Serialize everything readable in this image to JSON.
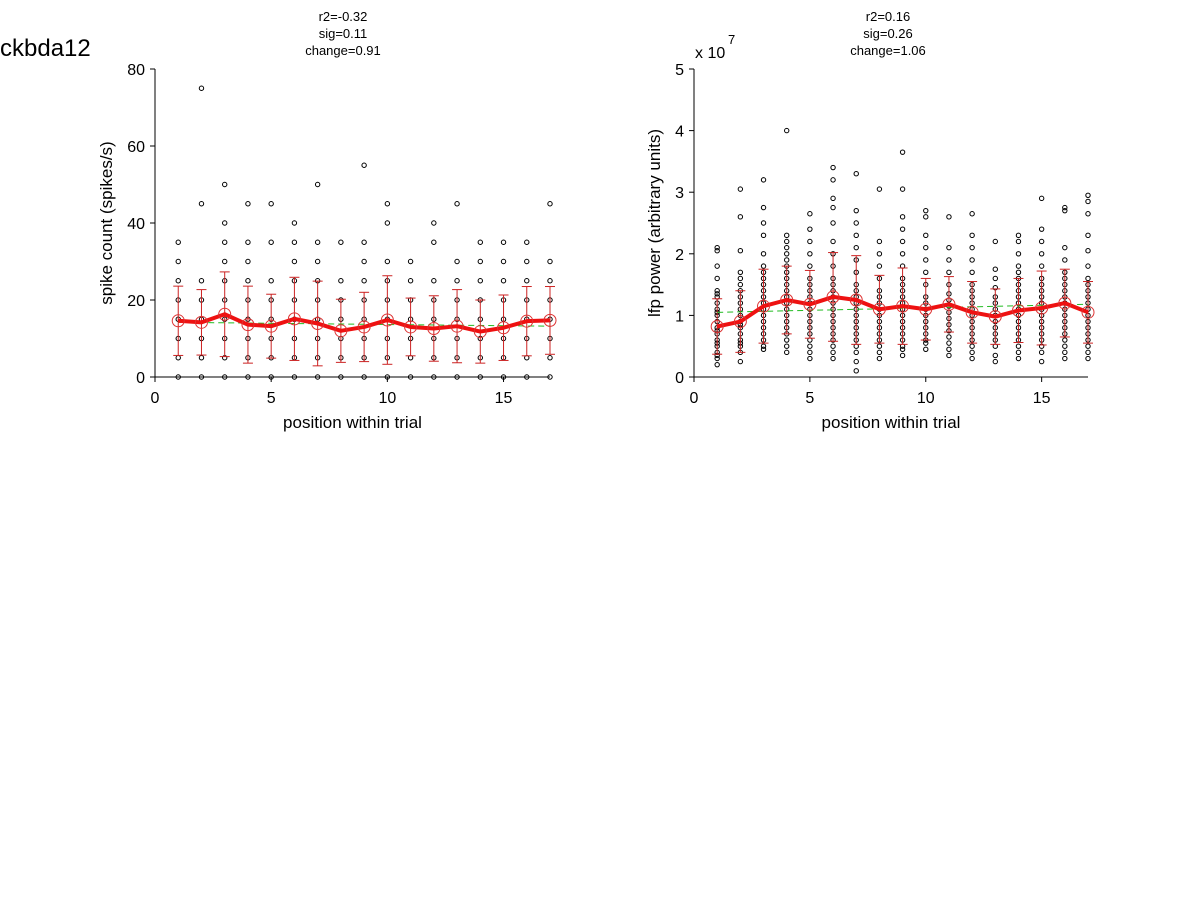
{
  "suptitle": "ckbda12",
  "colors": {
    "points": "#000000",
    "mean": "#ee1111",
    "errorbars": "#cc2222",
    "fit": "#22bb22"
  },
  "chart_data": [
    {
      "type": "scatter",
      "title_lines": [
        "r2=-0.32",
        "sig=0.11",
        "change=0.91"
      ],
      "xlabel": "position within trial",
      "ylabel": "spike count (spikes/s)",
      "exponent_label": "",
      "xlim": [
        0,
        17
      ],
      "ylim": [
        0,
        80
      ],
      "xticks": [
        0,
        5,
        10,
        15
      ],
      "yticks": [
        0,
        20,
        40,
        60,
        80
      ],
      "grid": false,
      "x": [
        1,
        2,
        3,
        4,
        5,
        6,
        7,
        8,
        9,
        10,
        11,
        12,
        13,
        14,
        15,
        16,
        17
      ],
      "mean": [
        14.6,
        14.2,
        16.3,
        13.6,
        13.2,
        15.1,
        13.9,
        12.0,
        13.0,
        14.8,
        13.0,
        12.6,
        13.2,
        11.8,
        12.8,
        14.5,
        14.7
      ],
      "error": [
        9.0,
        8.5,
        11.0,
        10.0,
        8.3,
        10.8,
        11.0,
        8.2,
        9.0,
        11.5,
        7.5,
        8.5,
        9.5,
        8.2,
        8.5,
        9.0,
        8.8
      ],
      "fit": [
        14.2,
        13.2
      ],
      "points": [
        [
          0,
          5,
          10,
          15,
          20,
          25,
          30,
          35
        ],
        [
          0,
          5,
          10,
          15,
          20,
          25,
          45,
          75
        ],
        [
          0,
          5,
          10,
          15,
          20,
          25,
          30,
          35,
          40,
          50
        ],
        [
          0,
          5,
          10,
          15,
          20,
          25,
          30,
          35,
          45
        ],
        [
          0,
          5,
          10,
          15,
          20,
          25,
          35,
          45
        ],
        [
          0,
          5,
          10,
          15,
          20,
          25,
          30,
          35,
          40
        ],
        [
          0,
          5,
          10,
          15,
          20,
          25,
          30,
          35,
          50
        ],
        [
          0,
          5,
          10,
          15,
          20,
          25,
          35
        ],
        [
          0,
          5,
          10,
          15,
          20,
          25,
          30,
          35,
          55
        ],
        [
          0,
          5,
          10,
          15,
          20,
          25,
          30,
          40,
          45
        ],
        [
          0,
          5,
          10,
          15,
          20,
          25,
          30
        ],
        [
          0,
          5,
          10,
          15,
          20,
          25,
          35,
          40
        ],
        [
          0,
          5,
          10,
          15,
          20,
          25,
          30,
          45
        ],
        [
          0,
          5,
          10,
          15,
          20,
          25,
          30,
          35
        ],
        [
          0,
          5,
          10,
          15,
          20,
          25,
          30,
          35
        ],
        [
          0,
          5,
          10,
          15,
          20,
          25,
          30,
          35
        ],
        [
          0,
          5,
          10,
          15,
          20,
          25,
          30,
          45
        ]
      ]
    },
    {
      "type": "scatter",
      "title_lines": [
        "r2=0.16",
        "sig=0.26",
        "change=1.06"
      ],
      "xlabel": "position within trial",
      "ylabel": "lfp power (arbitrary units)",
      "exponent_label": "x 10",
      "exponent_power": "7",
      "xlim": [
        0,
        17
      ],
      "ylim": [
        0,
        5
      ],
      "xticks": [
        0,
        5,
        10,
        15
      ],
      "yticks": [
        0,
        1,
        2,
        3,
        4,
        5
      ],
      "grid": false,
      "x": [
        1,
        2,
        3,
        4,
        5,
        6,
        7,
        8,
        9,
        10,
        11,
        12,
        13,
        14,
        15,
        16,
        17
      ],
      "mean": [
        0.82,
        0.9,
        1.15,
        1.25,
        1.18,
        1.3,
        1.25,
        1.1,
        1.15,
        1.1,
        1.18,
        1.05,
        0.98,
        1.08,
        1.12,
        1.2,
        1.05
      ],
      "error": [
        0.45,
        0.5,
        0.6,
        0.55,
        0.55,
        0.72,
        0.72,
        0.55,
        0.62,
        0.5,
        0.45,
        0.5,
        0.45,
        0.52,
        0.6,
        0.55,
        0.5
      ],
      "fit": [
        1.05,
        1.18
      ],
      "points": [
        [
          0.2,
          0.3,
          0.35,
          0.4,
          0.5,
          0.55,
          0.6,
          0.7,
          0.75,
          0.8,
          0.9,
          1.0,
          1.05,
          1.1,
          1.2,
          1.3,
          1.35,
          1.4,
          1.6,
          1.8,
          2.05,
          2.1
        ],
        [
          0.25,
          0.4,
          0.5,
          0.55,
          0.6,
          0.7,
          0.8,
          0.85,
          0.9,
          1.0,
          1.1,
          1.2,
          1.3,
          1.4,
          1.5,
          1.6,
          1.7,
          2.05,
          2.6,
          3.05
        ],
        [
          0.45,
          0.5,
          0.6,
          0.7,
          0.8,
          0.9,
          1.0,
          1.1,
          1.2,
          1.3,
          1.4,
          1.5,
          1.6,
          1.7,
          1.8,
          2.0,
          2.3,
          2.5,
          2.75,
          3.2
        ],
        [
          0.4,
          0.5,
          0.6,
          0.7,
          0.8,
          0.9,
          1.0,
          1.1,
          1.2,
          1.3,
          1.4,
          1.5,
          1.6,
          1.7,
          1.8,
          1.9,
          2.0,
          2.1,
          2.2,
          2.3,
          4.0
        ],
        [
          0.3,
          0.4,
          0.5,
          0.6,
          0.7,
          0.8,
          0.9,
          1.0,
          1.1,
          1.2,
          1.3,
          1.4,
          1.5,
          1.6,
          1.8,
          2.0,
          2.2,
          2.4,
          2.65
        ],
        [
          0.3,
          0.4,
          0.5,
          0.6,
          0.7,
          0.8,
          0.9,
          1.0,
          1.1,
          1.2,
          1.3,
          1.4,
          1.5,
          1.6,
          1.8,
          2.0,
          2.2,
          2.5,
          2.75,
          2.9,
          3.2,
          3.4
        ],
        [
          0.1,
          0.25,
          0.4,
          0.5,
          0.6,
          0.7,
          0.8,
          0.9,
          1.0,
          1.1,
          1.2,
          1.3,
          1.4,
          1.5,
          1.7,
          1.9,
          2.1,
          2.3,
          2.5,
          2.7,
          3.3
        ],
        [
          0.3,
          0.4,
          0.5,
          0.6,
          0.7,
          0.8,
          0.9,
          1.0,
          1.1,
          1.2,
          1.3,
          1.4,
          1.6,
          1.8,
          2.0,
          2.2,
          3.05
        ],
        [
          0.35,
          0.45,
          0.5,
          0.6,
          0.7,
          0.8,
          0.9,
          1.0,
          1.1,
          1.2,
          1.3,
          1.4,
          1.5,
          1.6,
          1.8,
          2.0,
          2.2,
          2.4,
          2.6,
          3.05,
          3.65
        ],
        [
          0.45,
          0.55,
          0.6,
          0.7,
          0.8,
          0.9,
          1.0,
          1.1,
          1.2,
          1.3,
          1.5,
          1.7,
          1.9,
          2.1,
          2.3,
          2.6,
          2.7
        ],
        [
          0.35,
          0.45,
          0.55,
          0.65,
          0.75,
          0.85,
          0.95,
          1.05,
          1.15,
          1.25,
          1.35,
          1.5,
          1.7,
          1.9,
          2.1,
          2.6
        ],
        [
          0.3,
          0.4,
          0.5,
          0.6,
          0.7,
          0.8,
          0.9,
          1.0,
          1.1,
          1.2,
          1.3,
          1.4,
          1.5,
          1.7,
          1.9,
          2.1,
          2.3,
          2.65
        ],
        [
          0.25,
          0.35,
          0.5,
          0.6,
          0.7,
          0.8,
          0.9,
          1.0,
          1.1,
          1.2,
          1.3,
          1.45,
          1.6,
          1.75,
          2.2
        ],
        [
          0.3,
          0.4,
          0.5,
          0.6,
          0.7,
          0.8,
          0.9,
          1.0,
          1.1,
          1.2,
          1.3,
          1.4,
          1.5,
          1.6,
          1.7,
          1.8,
          2.0,
          2.2,
          2.3
        ],
        [
          0.25,
          0.4,
          0.5,
          0.6,
          0.7,
          0.8,
          0.9,
          1.0,
          1.1,
          1.2,
          1.3,
          1.4,
          1.5,
          1.6,
          1.8,
          2.0,
          2.2,
          2.4,
          2.9
        ],
        [
          0.3,
          0.4,
          0.5,
          0.6,
          0.7,
          0.8,
          0.9,
          1.0,
          1.1,
          1.2,
          1.3,
          1.4,
          1.5,
          1.6,
          1.7,
          1.9,
          2.1,
          2.7,
          2.75
        ],
        [
          0.3,
          0.4,
          0.5,
          0.6,
          0.7,
          0.8,
          0.9,
          1.0,
          1.1,
          1.2,
          1.3,
          1.4,
          1.5,
          1.6,
          1.8,
          2.05,
          2.3,
          2.65,
          2.85,
          2.95
        ]
      ]
    }
  ]
}
